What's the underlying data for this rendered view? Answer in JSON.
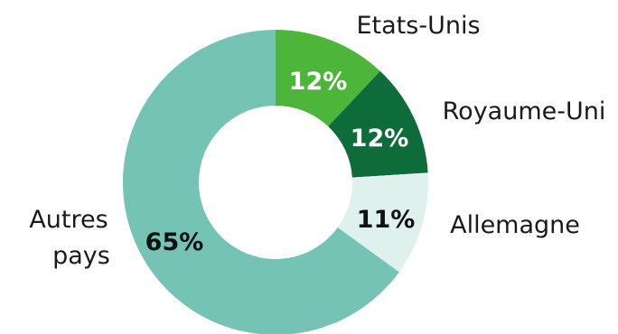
{
  "chart_data": {
    "type": "pie",
    "donut": true,
    "slices": [
      {
        "label": "Etats-Unis",
        "value": 12,
        "value_label": "12%",
        "color": "#4db53a",
        "value_color": "#ffffff"
      },
      {
        "label": "Royaume-Uni",
        "value": 12,
        "value_label": "12%",
        "color": "#0e6b3a",
        "value_color": "#ffffff"
      },
      {
        "label": "Allemagne",
        "value": 11,
        "value_label": "11%",
        "color": "#dff1ec",
        "value_color": "#111111"
      },
      {
        "label": "Autres pays",
        "label_lines": [
          "Autres",
          "pays"
        ],
        "value": 65,
        "value_label": "65%",
        "color": "#74c3b5",
        "value_color": "#111111"
      }
    ],
    "start": "12 o'clock",
    "direction": "clockwise",
    "legend": "none"
  }
}
